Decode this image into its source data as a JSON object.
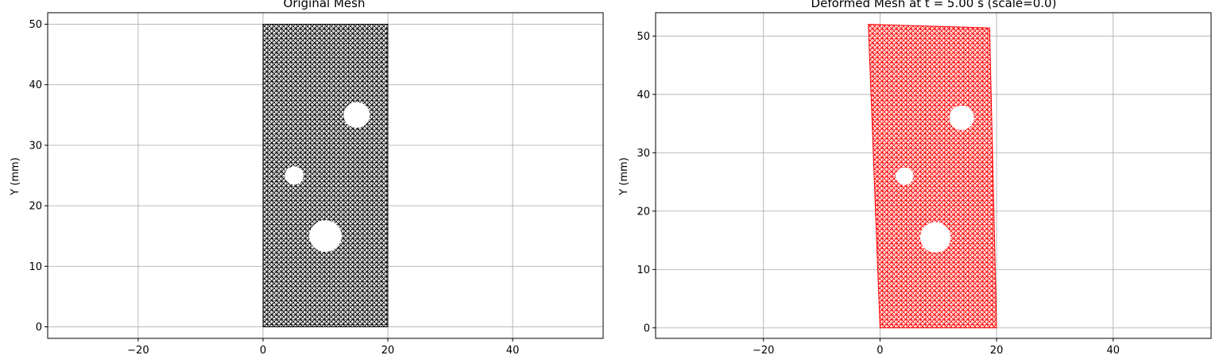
{
  "chart_data": [
    {
      "type": "scatter",
      "subtype": "mesh",
      "title": "Original Mesh",
      "xlabel": "",
      "ylabel": "Y (mm)",
      "xlim": [
        -34.5,
        54.5
      ],
      "ylim": [
        -1.9,
        51.9
      ],
      "xticks": [
        -20,
        0,
        20,
        40
      ],
      "xtick_labels": [
        "−20",
        "0",
        "20",
        "40"
      ],
      "yticks": [
        0,
        10,
        20,
        30,
        40,
        50
      ],
      "ytick_labels": [
        "0",
        "10",
        "20",
        "30",
        "40",
        "50"
      ],
      "grid": true,
      "mesh_color": "#000000",
      "mesh_outline": [
        [
          0,
          0
        ],
        [
          20,
          0
        ],
        [
          20,
          50
        ],
        [
          0,
          50
        ]
      ],
      "holes": [
        {
          "cx": 15,
          "cy": 35,
          "r": 2.1
        },
        {
          "cx": 5,
          "cy": 25,
          "r": 1.5
        },
        {
          "cx": 10,
          "cy": 15,
          "r": 2.6
        }
      ]
    },
    {
      "type": "scatter",
      "subtype": "mesh",
      "title": "Deformed Mesh at t = 5.00 s (scale=0.0)",
      "xlabel": "",
      "ylabel": "Y (mm)",
      "xlim": [
        -38.5,
        56.8
      ],
      "ylim": [
        -1.8,
        54.0
      ],
      "xticks": [
        -20,
        0,
        20,
        40
      ],
      "xtick_labels": [
        "−20",
        "0",
        "20",
        "40"
      ],
      "yticks": [
        0,
        10,
        20,
        30,
        40,
        50
      ],
      "ytick_labels": [
        "0",
        "10",
        "20",
        "30",
        "40",
        "50"
      ],
      "grid": true,
      "mesh_color": "#ff0000",
      "mesh_outline": [
        [
          0,
          0
        ],
        [
          20,
          0
        ],
        [
          18.8,
          51.4
        ],
        [
          -2,
          52
        ]
      ],
      "holes": [
        {
          "cx": 14,
          "cy": 36,
          "r": 2.1
        },
        {
          "cx": 4.2,
          "cy": 26,
          "r": 1.5
        },
        {
          "cx": 9.5,
          "cy": 15.5,
          "r": 2.6
        }
      ]
    }
  ]
}
